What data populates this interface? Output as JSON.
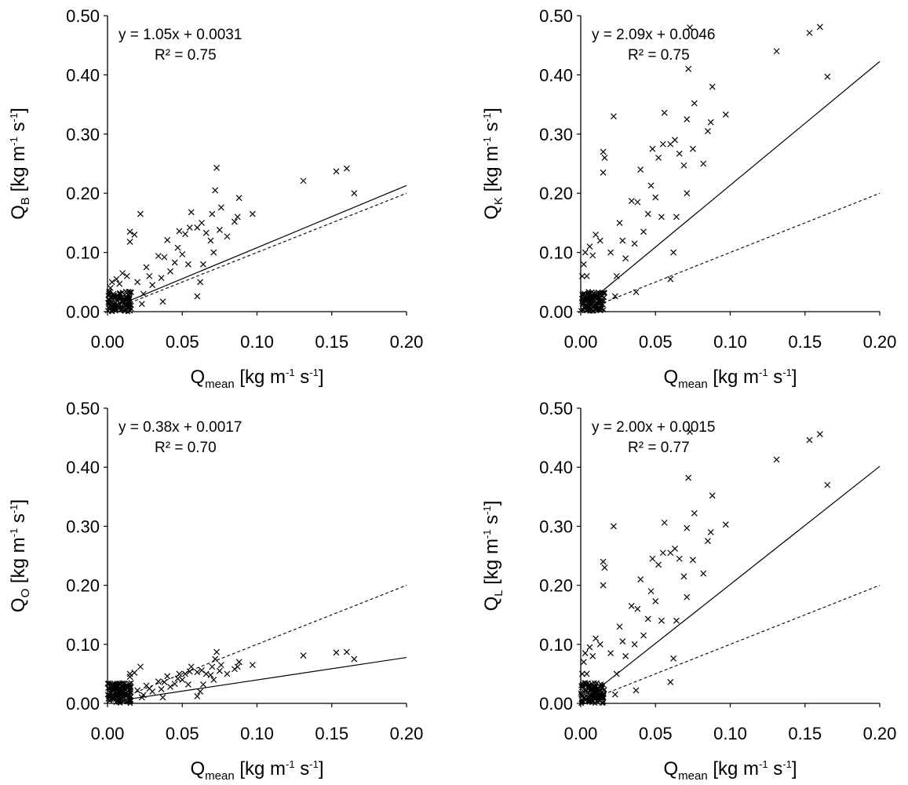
{
  "colors": {
    "marker": "#000000",
    "fit_line": "#000000",
    "ref_line": "#000000",
    "axis": "#000000"
  },
  "chart_data": [
    {
      "type": "scatter",
      "panel": "top-left",
      "xlabel": {
        "main": "Q",
        "sub": "mean",
        "unit_a": " [kg m",
        "exp_a": "-1",
        "unit_b": " s",
        "exp_b": "-1",
        "unit_c": "]"
      },
      "ylabel": {
        "main": "Q",
        "sub": "B",
        "unit_a": " [kg m",
        "exp_a": "-1",
        "unit_b": " s",
        "exp_b": "-1",
        "unit_c": "]"
      },
      "xlim": [
        0,
        0.2
      ],
      "ylim": [
        0,
        0.5
      ],
      "xticks": [
        "0.00",
        "0.05",
        "0.10",
        "0.15",
        "0.20"
      ],
      "yticks": [
        "0.00",
        "0.10",
        "0.20",
        "0.30",
        "0.40",
        "0.50"
      ],
      "equation": "y = 1.05x + 0.0031",
      "r2": "R² = 0.75",
      "fit": {
        "slope": 1.05,
        "intercept": 0.0031
      },
      "reference_line": "1:1",
      "points": [
        [
          0.165,
          0.2
        ],
        [
          0.16,
          0.242
        ],
        [
          0.153,
          0.237
        ],
        [
          0.131,
          0.221
        ],
        [
          0.097,
          0.165
        ],
        [
          0.088,
          0.192
        ],
        [
          0.087,
          0.16
        ],
        [
          0.085,
          0.152
        ],
        [
          0.08,
          0.127
        ],
        [
          0.076,
          0.176
        ],
        [
          0.073,
          0.243
        ],
        [
          0.072,
          0.205
        ],
        [
          0.07,
          0.165
        ],
        [
          0.075,
          0.138
        ],
        [
          0.069,
          0.12
        ],
        [
          0.071,
          0.1
        ],
        [
          0.066,
          0.133
        ],
        [
          0.063,
          0.15
        ],
        [
          0.06,
          0.142
        ],
        [
          0.064,
          0.08
        ],
        [
          0.062,
          0.05
        ],
        [
          0.06,
          0.026
        ],
        [
          0.056,
          0.168
        ],
        [
          0.055,
          0.142
        ],
        [
          0.052,
          0.131
        ],
        [
          0.05,
          0.097
        ],
        [
          0.054,
          0.08
        ],
        [
          0.048,
          0.136
        ],
        [
          0.047,
          0.108
        ],
        [
          0.045,
          0.083
        ],
        [
          0.042,
          0.068
        ],
        [
          0.04,
          0.121
        ],
        [
          0.038,
          0.092
        ],
        [
          0.036,
          0.057
        ],
        [
          0.037,
          0.017
        ],
        [
          0.034,
          0.094
        ],
        [
          0.03,
          0.045
        ],
        [
          0.028,
          0.06
        ],
        [
          0.026,
          0.075
        ],
        [
          0.024,
          0.03
        ],
        [
          0.022,
          0.165
        ],
        [
          0.023,
          0.013
        ],
        [
          0.02,
          0.05
        ],
        [
          0.018,
          0.13
        ],
        [
          0.015,
          0.135
        ],
        [
          0.015,
          0.118
        ],
        [
          0.013,
          0.06
        ],
        [
          0.01,
          0.065
        ],
        [
          0.008,
          0.047
        ],
        [
          0.006,
          0.055
        ],
        [
          0.004,
          0.03
        ],
        [
          0.003,
          0.05
        ],
        [
          0.002,
          0.04
        ],
        [
          0.001,
          0.03
        ]
      ]
    },
    {
      "type": "scatter",
      "panel": "top-right",
      "xlabel": {
        "main": "Q",
        "sub": "mean",
        "unit_a": " [kg m",
        "exp_a": "-1",
        "unit_b": " s",
        "exp_b": "-1",
        "unit_c": "]"
      },
      "ylabel": {
        "main": "Q",
        "sub": "K",
        "unit_a": " [kg m",
        "exp_a": "-1",
        "unit_b": " s",
        "exp_b": "-1",
        "unit_c": "]"
      },
      "xlim": [
        0,
        0.2
      ],
      "ylim": [
        0,
        0.5
      ],
      "xticks": [
        "0.00",
        "0.05",
        "0.10",
        "0.15",
        "0.20"
      ],
      "yticks": [
        "0.00",
        "0.10",
        "0.20",
        "0.30",
        "0.40",
        "0.50"
      ],
      "equation": "y = 2.09x + 0.0046",
      "r2": "R² = 0.75",
      "fit": {
        "slope": 2.09,
        "intercept": 0.0046
      },
      "reference_line": "1:1",
      "points": [
        [
          0.165,
          0.397
        ],
        [
          0.16,
          0.481
        ],
        [
          0.153,
          0.471
        ],
        [
          0.131,
          0.44
        ],
        [
          0.097,
          0.333
        ],
        [
          0.088,
          0.38
        ],
        [
          0.087,
          0.32
        ],
        [
          0.085,
          0.305
        ],
        [
          0.082,
          0.25
        ],
        [
          0.076,
          0.352
        ],
        [
          0.073,
          0.48
        ],
        [
          0.072,
          0.41
        ],
        [
          0.071,
          0.325
        ],
        [
          0.075,
          0.275
        ],
        [
          0.069,
          0.247
        ],
        [
          0.071,
          0.2
        ],
        [
          0.066,
          0.267
        ],
        [
          0.063,
          0.29
        ],
        [
          0.06,
          0.283
        ],
        [
          0.064,
          0.16
        ],
        [
          0.062,
          0.1
        ],
        [
          0.06,
          0.055
        ],
        [
          0.056,
          0.336
        ],
        [
          0.055,
          0.283
        ],
        [
          0.052,
          0.26
        ],
        [
          0.05,
          0.193
        ],
        [
          0.054,
          0.16
        ],
        [
          0.048,
          0.275
        ],
        [
          0.047,
          0.213
        ],
        [
          0.045,
          0.165
        ],
        [
          0.042,
          0.135
        ],
        [
          0.04,
          0.24
        ],
        [
          0.038,
          0.185
        ],
        [
          0.036,
          0.115
        ],
        [
          0.037,
          0.033
        ],
        [
          0.034,
          0.187
        ],
        [
          0.03,
          0.09
        ],
        [
          0.028,
          0.12
        ],
        [
          0.026,
          0.15
        ],
        [
          0.024,
          0.06
        ],
        [
          0.022,
          0.33
        ],
        [
          0.023,
          0.026
        ],
        [
          0.02,
          0.1
        ],
        [
          0.016,
          0.26
        ],
        [
          0.015,
          0.27
        ],
        [
          0.015,
          0.235
        ],
        [
          0.013,
          0.12
        ],
        [
          0.01,
          0.13
        ],
        [
          0.008,
          0.095
        ],
        [
          0.006,
          0.11
        ],
        [
          0.004,
          0.06
        ],
        [
          0.003,
          0.1
        ],
        [
          0.002,
          0.08
        ],
        [
          0.001,
          0.06
        ]
      ]
    },
    {
      "type": "scatter",
      "panel": "bottom-left",
      "xlabel": {
        "main": "Q",
        "sub": "mean",
        "unit_a": " [kg m",
        "exp_a": "-1",
        "unit_b": " s",
        "exp_b": "-1",
        "unit_c": "]"
      },
      "ylabel": {
        "main": "Q",
        "sub": "O",
        "unit_a": " [kg m",
        "exp_a": "-1",
        "unit_b": " s",
        "exp_b": "-1",
        "unit_c": "]"
      },
      "xlim": [
        0,
        0.2
      ],
      "ylim": [
        0,
        0.5
      ],
      "xticks": [
        "0.00",
        "0.05",
        "0.10",
        "0.15",
        "0.20"
      ],
      "yticks": [
        "0.00",
        "0.10",
        "0.20",
        "0.30",
        "0.40",
        "0.50"
      ],
      "equation": "y = 0.38x + 0.0017",
      "r2": "R² = 0.70",
      "fit": {
        "slope": 0.38,
        "intercept": 0.0017
      },
      "reference_line": "1:1",
      "points": [
        [
          0.165,
          0.075
        ],
        [
          0.16,
          0.087
        ],
        [
          0.153,
          0.086
        ],
        [
          0.131,
          0.081
        ],
        [
          0.097,
          0.065
        ],
        [
          0.088,
          0.07
        ],
        [
          0.087,
          0.062
        ],
        [
          0.085,
          0.058
        ],
        [
          0.08,
          0.05
        ],
        [
          0.076,
          0.065
        ],
        [
          0.073,
          0.087
        ],
        [
          0.072,
          0.075
        ],
        [
          0.07,
          0.062
        ],
        [
          0.075,
          0.055
        ],
        [
          0.069,
          0.048
        ],
        [
          0.071,
          0.04
        ],
        [
          0.066,
          0.05
        ],
        [
          0.063,
          0.056
        ],
        [
          0.06,
          0.053
        ],
        [
          0.064,
          0.032
        ],
        [
          0.062,
          0.02
        ],
        [
          0.06,
          0.012
        ],
        [
          0.056,
          0.062
        ],
        [
          0.055,
          0.054
        ],
        [
          0.052,
          0.05
        ],
        [
          0.05,
          0.04
        ],
        [
          0.054,
          0.032
        ],
        [
          0.048,
          0.05
        ],
        [
          0.047,
          0.042
        ],
        [
          0.045,
          0.033
        ],
        [
          0.042,
          0.028
        ],
        [
          0.04,
          0.046
        ],
        [
          0.038,
          0.036
        ],
        [
          0.036,
          0.024
        ],
        [
          0.037,
          0.01
        ],
        [
          0.034,
          0.037
        ],
        [
          0.03,
          0.02
        ],
        [
          0.028,
          0.025
        ],
        [
          0.026,
          0.03
        ],
        [
          0.024,
          0.014
        ],
        [
          0.022,
          0.062
        ],
        [
          0.023,
          0.01
        ],
        [
          0.02,
          0.022
        ],
        [
          0.018,
          0.052
        ],
        [
          0.015,
          0.05
        ],
        [
          0.015,
          0.045
        ],
        [
          0.013,
          0.026
        ],
        [
          0.01,
          0.027
        ],
        [
          0.008,
          0.02
        ],
        [
          0.006,
          0.024
        ],
        [
          0.004,
          0.014
        ],
        [
          0.003,
          0.02
        ],
        [
          0.002,
          0.017
        ],
        [
          0.001,
          0.012
        ]
      ]
    },
    {
      "type": "scatter",
      "panel": "bottom-right",
      "xlabel": {
        "main": "Q",
        "sub": "mean",
        "unit_a": " [kg m",
        "exp_a": "-1",
        "unit_b": " s",
        "exp_b": "-1",
        "unit_c": "]"
      },
      "ylabel": {
        "main": "Q",
        "sub": "L",
        "unit_a": " [kg m",
        "exp_a": "-1",
        "unit_b": " s",
        "exp_b": "-1",
        "unit_c": "]"
      },
      "xlim": [
        0,
        0.2
      ],
      "ylim": [
        0,
        0.5
      ],
      "xticks": [
        "0.00",
        "0.05",
        "0.10",
        "0.15",
        "0.20"
      ],
      "yticks": [
        "0.00",
        "0.10",
        "0.20",
        "0.30",
        "0.40",
        "0.50"
      ],
      "equation": "y = 2.00x + 0.0015",
      "r2": "R² = 0.77",
      "fit": {
        "slope": 2.0,
        "intercept": 0.0015
      },
      "reference_line": "1:1",
      "points": [
        [
          0.165,
          0.37
        ],
        [
          0.16,
          0.456
        ],
        [
          0.153,
          0.446
        ],
        [
          0.131,
          0.413
        ],
        [
          0.097,
          0.303
        ],
        [
          0.088,
          0.352
        ],
        [
          0.087,
          0.29
        ],
        [
          0.085,
          0.275
        ],
        [
          0.082,
          0.22
        ],
        [
          0.076,
          0.322
        ],
        [
          0.073,
          0.46
        ],
        [
          0.072,
          0.382
        ],
        [
          0.071,
          0.297
        ],
        [
          0.075,
          0.243
        ],
        [
          0.069,
          0.215
        ],
        [
          0.071,
          0.18
        ],
        [
          0.066,
          0.245
        ],
        [
          0.063,
          0.262
        ],
        [
          0.06,
          0.255
        ],
        [
          0.064,
          0.14
        ],
        [
          0.062,
          0.076
        ],
        [
          0.06,
          0.036
        ],
        [
          0.056,
          0.306
        ],
        [
          0.055,
          0.255
        ],
        [
          0.052,
          0.235
        ],
        [
          0.05,
          0.173
        ],
        [
          0.054,
          0.14
        ],
        [
          0.048,
          0.245
        ],
        [
          0.047,
          0.19
        ],
        [
          0.045,
          0.143
        ],
        [
          0.042,
          0.115
        ],
        [
          0.04,
          0.21
        ],
        [
          0.038,
          0.16
        ],
        [
          0.036,
          0.1
        ],
        [
          0.037,
          0.022
        ],
        [
          0.034,
          0.165
        ],
        [
          0.03,
          0.08
        ],
        [
          0.028,
          0.105
        ],
        [
          0.026,
          0.13
        ],
        [
          0.024,
          0.05
        ],
        [
          0.022,
          0.3
        ],
        [
          0.023,
          0.015
        ],
        [
          0.02,
          0.085
        ],
        [
          0.016,
          0.23
        ],
        [
          0.015,
          0.24
        ],
        [
          0.015,
          0.2
        ],
        [
          0.013,
          0.1
        ],
        [
          0.01,
          0.11
        ],
        [
          0.008,
          0.08
        ],
        [
          0.006,
          0.095
        ],
        [
          0.004,
          0.05
        ],
        [
          0.003,
          0.085
        ],
        [
          0.002,
          0.07
        ],
        [
          0.001,
          0.05
        ]
      ]
    }
  ]
}
